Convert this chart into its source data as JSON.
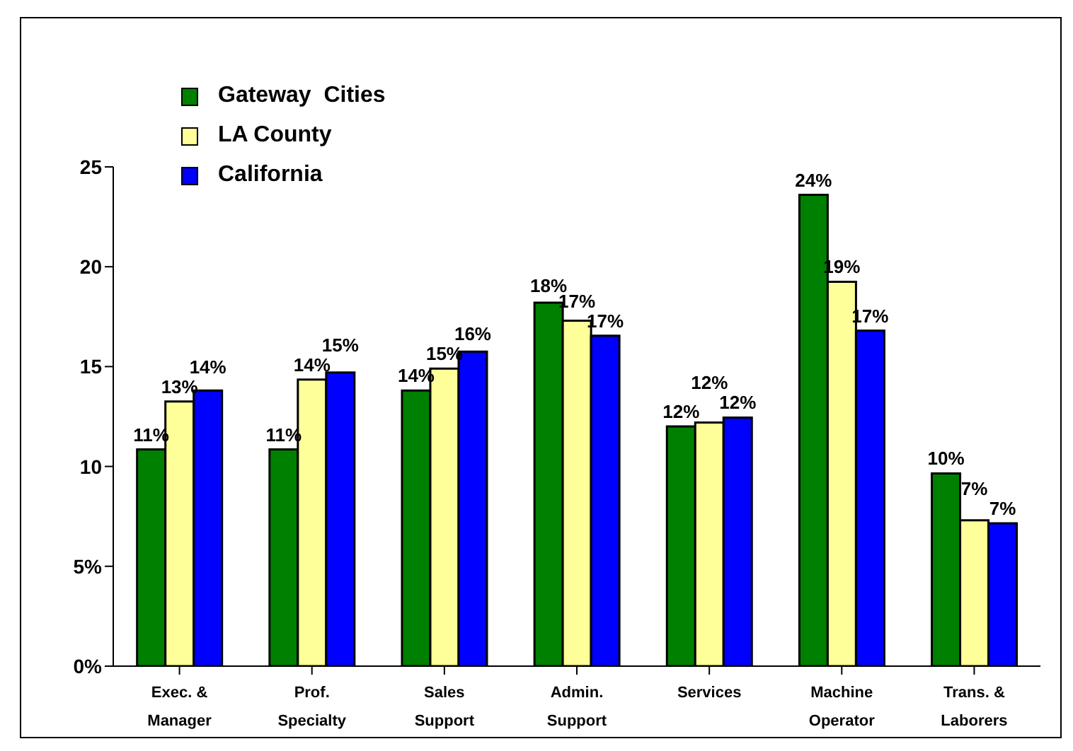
{
  "chart_data": {
    "type": "bar",
    "categories": [
      "Exec. &\nManager",
      "Prof.\nSpecialty",
      "Sales\nSupport",
      "Admin.\nSupport",
      "Services",
      "Machine\nOperator",
      "Trans. &\nLaborers"
    ],
    "series": [
      {
        "name": "Gateway  Cities",
        "color": "#008000",
        "values": [
          10.85,
          10.85,
          13.8,
          18.2,
          12.0,
          23.6,
          9.65
        ],
        "value_labels": [
          "11%",
          "11%",
          "14%",
          "18%",
          "12%",
          "24%",
          "10%"
        ]
      },
      {
        "name": "LA County",
        "color": "#ffff99",
        "values": [
          13.25,
          14.35,
          14.9,
          17.3,
          12.2,
          19.25,
          7.3
        ],
        "value_labels": [
          "13%",
          "14%",
          "15%",
          "17%",
          "12%",
          "19%",
          "7%"
        ]
      },
      {
        "name": "California",
        "color": "#0000ff",
        "values": [
          13.8,
          14.7,
          15.75,
          16.55,
          12.45,
          16.8,
          7.15
        ],
        "value_labels": [
          "14%",
          "15%",
          "16%",
          "17%",
          "12%",
          "17%",
          "7%"
        ]
      }
    ],
    "ylim": [
      0,
      25
    ],
    "yticks": [
      {
        "value": 0,
        "label": "0%"
      },
      {
        "value": 5,
        "label": "5%"
      },
      10,
      15,
      20,
      25
    ],
    "grid": false,
    "legend": "top left"
  }
}
